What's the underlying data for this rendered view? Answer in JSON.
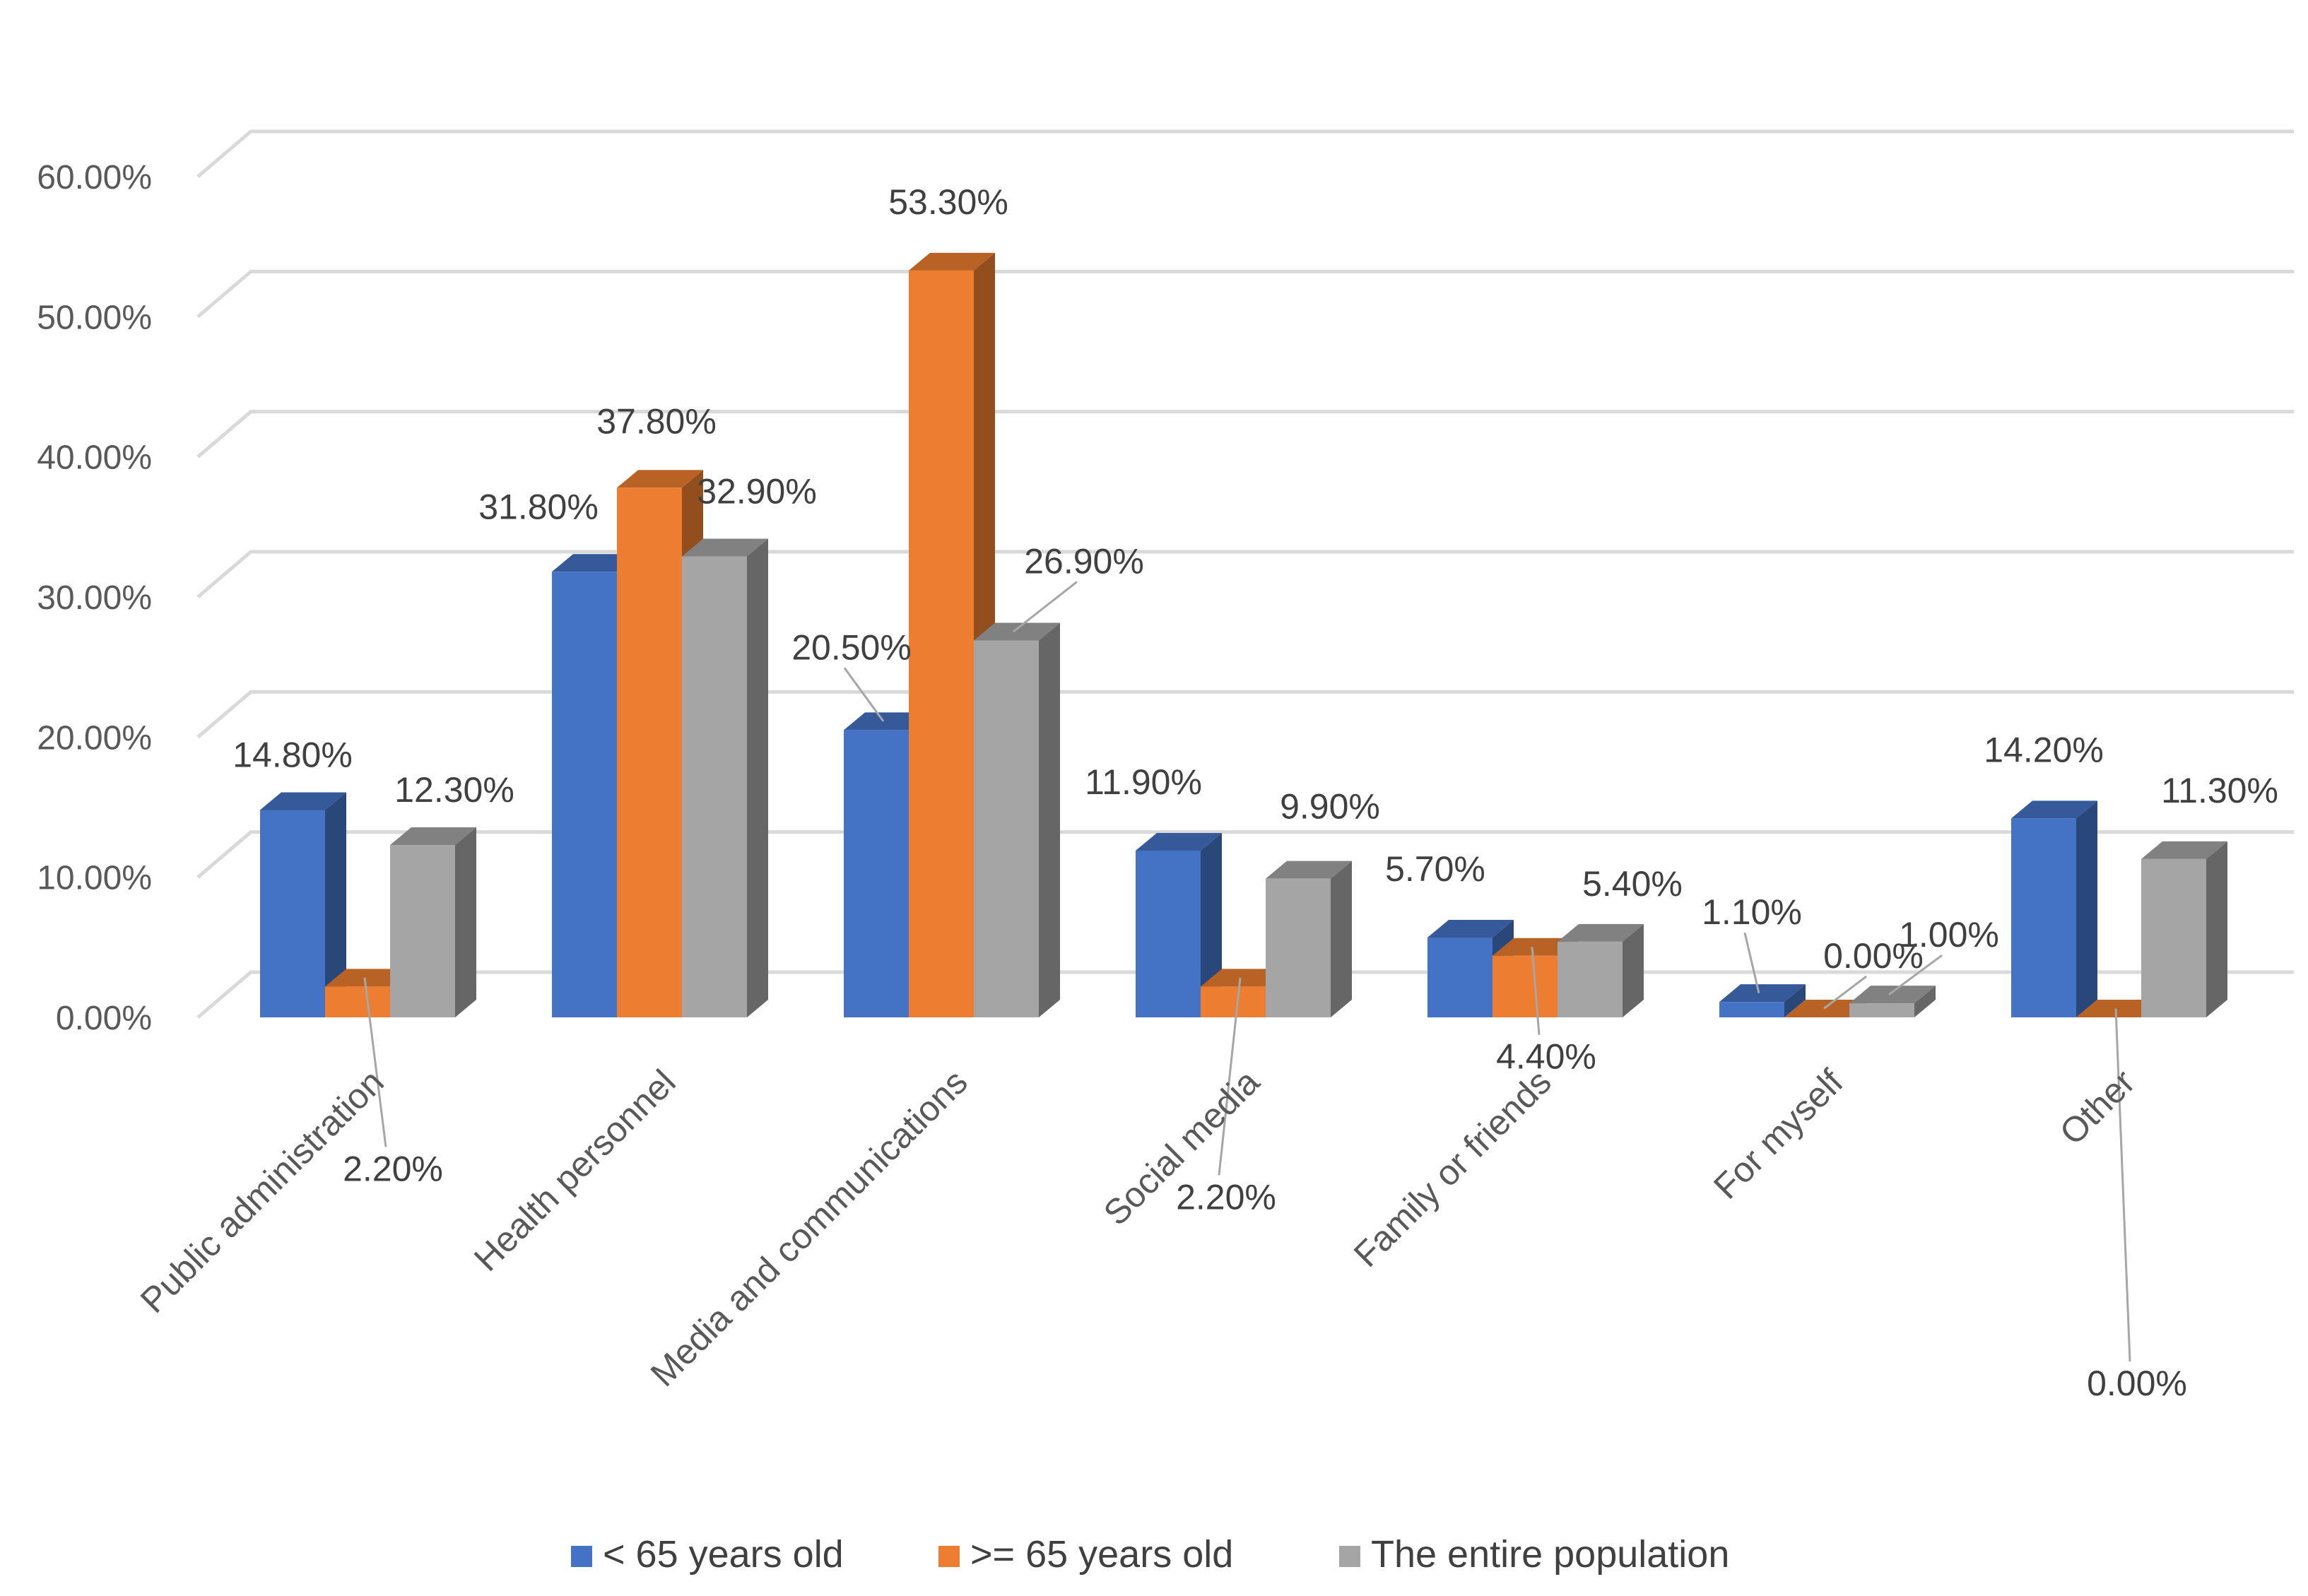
{
  "chart_data": {
    "type": "bar",
    "variant": "3d-clustered-column",
    "title": "",
    "xlabel": "",
    "ylabel": "",
    "ylim": [
      0,
      60
    ],
    "y_ticks": [
      "0.00%",
      "10.00%",
      "20.00%",
      "30.00%",
      "40.00%",
      "50.00%",
      "60.00%"
    ],
    "grid": true,
    "legend_position": "bottom",
    "categories": [
      "Public administration",
      "Health personnel",
      "Media and communications",
      "Social media",
      "Family or friends",
      "For myself",
      "Other"
    ],
    "series": [
      {
        "name": "< 65 years old",
        "color": "#4472C4",
        "values": [
          14.8,
          31.8,
          20.5,
          11.9,
          5.7,
          1.1,
          14.2
        ],
        "labels": [
          "14.80%",
          "31.80%",
          "20.50%",
          "11.90%",
          "5.70%",
          "1.10%",
          "14.20%"
        ]
      },
      {
        "name": ">= 65 years old",
        "color": "#ED7D31",
        "values": [
          2.2,
          37.8,
          53.3,
          2.2,
          4.4,
          0.0,
          0.0
        ],
        "labels": [
          "2.20%",
          "37.80%",
          "53.30%",
          "2.20%",
          "4.40%",
          "0.00%",
          "0.00%"
        ]
      },
      {
        "name": "The entire population",
        "color": "#A5A5A5",
        "values": [
          12.3,
          32.9,
          26.9,
          9.9,
          5.4,
          1.0,
          11.3
        ],
        "labels": [
          "12.30%",
          "32.90%",
          "26.90%",
          "9.90%",
          "5.40%",
          "1.00%",
          "11.30%"
        ]
      }
    ]
  }
}
